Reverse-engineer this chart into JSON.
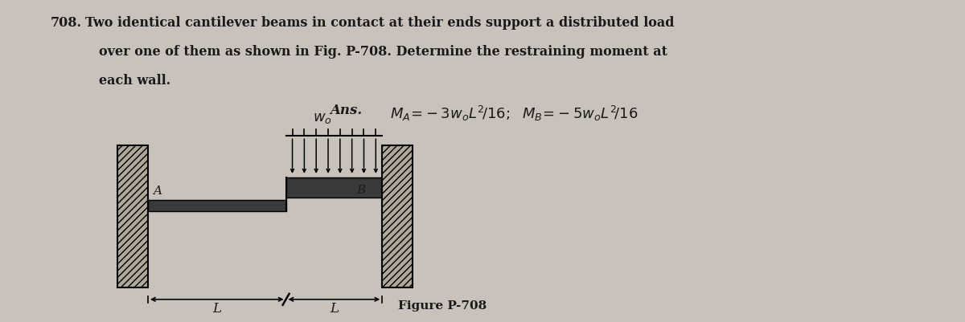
{
  "background_color": "#c9c2ba",
  "fig_width": 12.0,
  "fig_height": 4.01,
  "problem_number": "708.",
  "problem_text_line1": "Two identical cantilever beams in contact at their ends support a distributed load",
  "problem_text_line2": "over one of them as shown in Fig. P-708. Determine the restraining moment at",
  "problem_text_line3": "each wall.",
  "answer_label": "Ans.",
  "figure_caption": "Figure P-708",
  "text_color": "#1a1a1a",
  "wall_facecolor": "#b0a898",
  "beam_color": "#2a2a2a",
  "hatch_color": "#2a2a2a"
}
